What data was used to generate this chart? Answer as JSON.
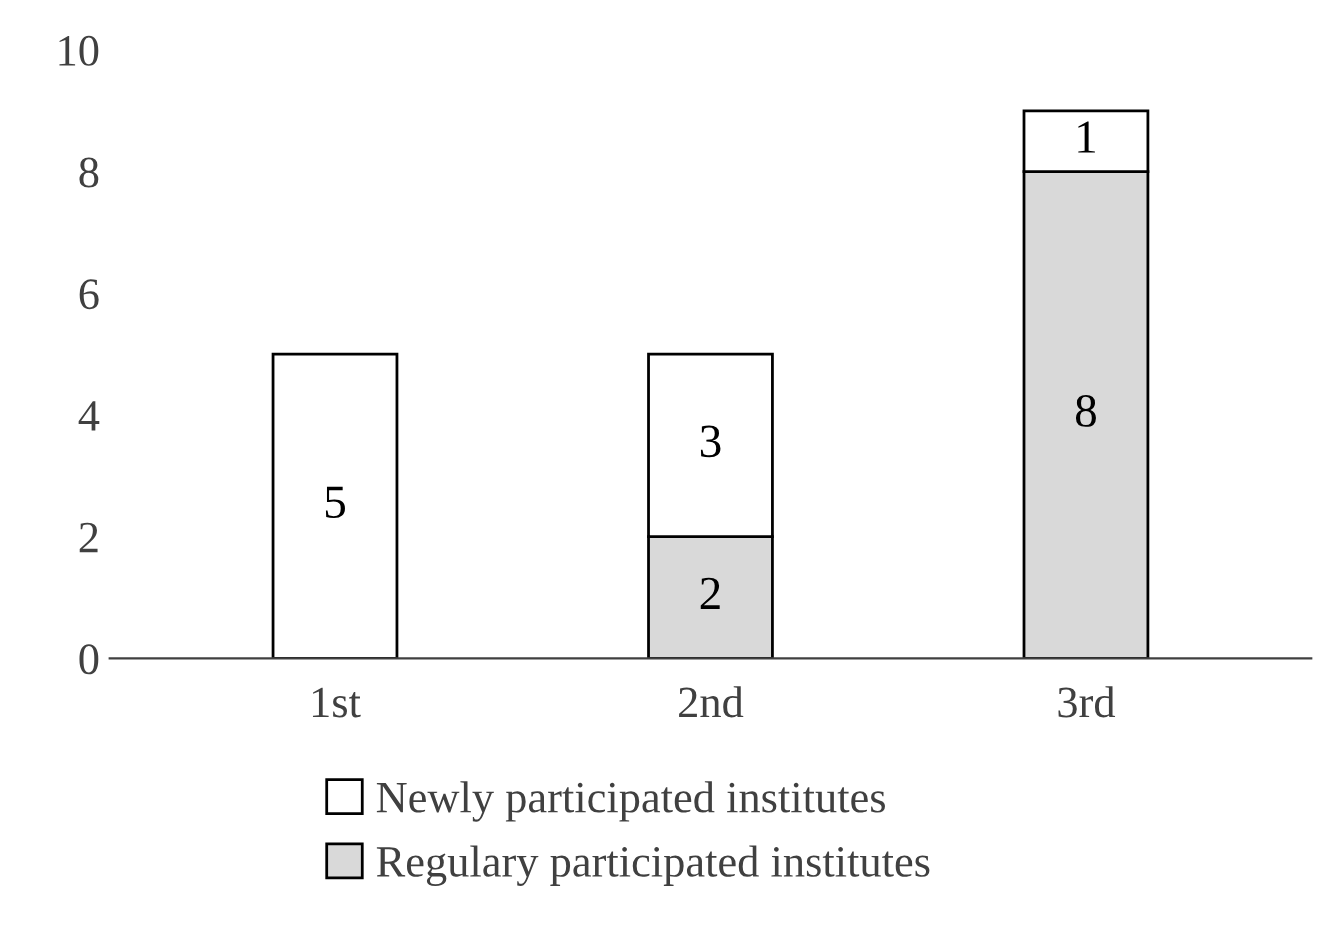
{
  "chart_data": {
    "type": "bar",
    "stacked": true,
    "categories": [
      "1st",
      "2nd",
      "3rd"
    ],
    "series": [
      {
        "name": "Regulary participated institutes",
        "color": "#d9d9d9",
        "values": [
          null,
          2,
          8
        ],
        "value_labels": [
          null,
          "2",
          "8"
        ]
      },
      {
        "name": "Newly participated institutes",
        "color": "#ffffff",
        "values": [
          5,
          3,
          1
        ],
        "value_labels": [
          "5",
          "3",
          "1"
        ]
      }
    ],
    "ylim": [
      0,
      10
    ],
    "yticks": [
      0,
      2,
      4,
      6,
      8,
      10
    ],
    "grid": false,
    "legend": "bottom"
  }
}
